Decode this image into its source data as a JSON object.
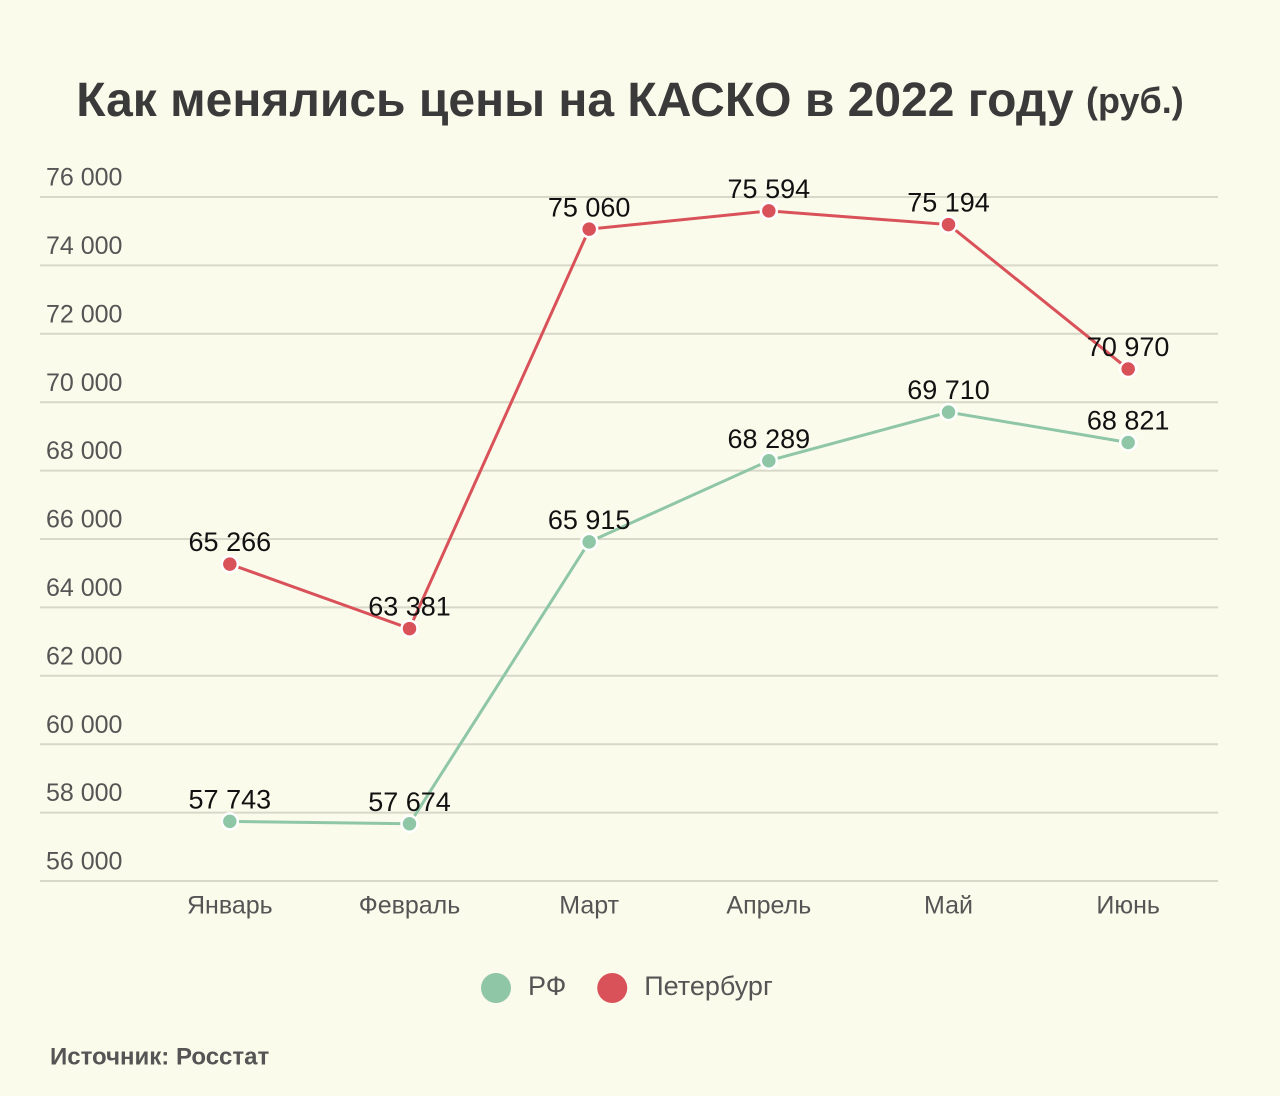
{
  "chart_data": {
    "type": "line",
    "title": "Как менялись цены на КАСКО в 2022 году",
    "unit": "(руб.)",
    "source": "Источник: Росстат",
    "categories": [
      "Январь",
      "Февраль",
      "Март",
      "Апрель",
      "Май",
      "Июнь"
    ],
    "series": [
      {
        "name": "РФ",
        "color": "#8fc6a6",
        "values": [
          57743,
          57674,
          65915,
          68289,
          69710,
          68821
        ],
        "value_labels": [
          "57 743",
          "57 674",
          "65 915",
          "68 289",
          "69 710",
          "68 821"
        ]
      },
      {
        "name": "Петербург",
        "color": "#d9525a",
        "values": [
          65266,
          63381,
          75060,
          75594,
          75194,
          70970
        ],
        "value_labels": [
          "65 266",
          "63 381",
          "75 060",
          "75 594",
          "75 194",
          "70 970"
        ]
      }
    ],
    "ylim": [
      56000,
      76000
    ],
    "yticks": [
      {
        "value": 56000,
        "label": "56 000"
      },
      {
        "value": 58000,
        "label": "58 000"
      },
      {
        "value": 60000,
        "label": "60 000"
      },
      {
        "value": 62000,
        "label": "62 000"
      },
      {
        "value": 64000,
        "label": "64 000"
      },
      {
        "value": 66000,
        "label": "66 000"
      },
      {
        "value": 68000,
        "label": "68 000"
      },
      {
        "value": 70000,
        "label": "70 000"
      },
      {
        "value": 72000,
        "label": "72 000"
      },
      {
        "value": 74000,
        "label": "74 000"
      },
      {
        "value": 76000,
        "label": "76 000"
      }
    ],
    "grid": true,
    "legend": "bottom"
  }
}
